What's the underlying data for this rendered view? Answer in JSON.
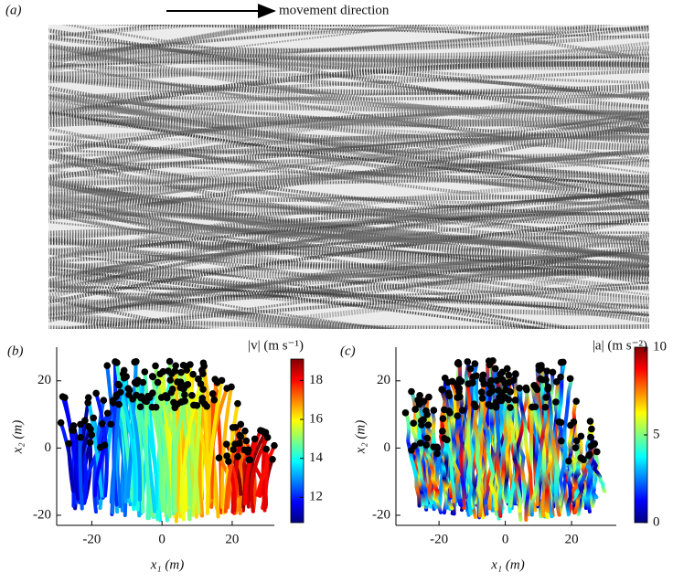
{
  "panel_a": {
    "label": "(a)",
    "annotation": "movement direction"
  },
  "chart_data": [
    {
      "type": "trajectory",
      "label": "(b)",
      "xlabel": "x₁ (m)",
      "ylabel": "x₂ (m)",
      "xlim": [
        -30,
        32
      ],
      "ylim": [
        -23,
        30
      ],
      "xticks": [
        -20,
        0,
        20
      ],
      "yticks": [
        -20,
        0,
        20
      ],
      "colorbar": {
        "title": "|v| (m s⁻¹)",
        "lim": [
          10.7,
          19.1
        ],
        "ticks": [
          12,
          14,
          16,
          18
        ],
        "colormap": "jet"
      }
    },
    {
      "type": "trajectory",
      "label": "(c)",
      "xlabel": "x₁ (m)",
      "ylabel": "x₂ (m)",
      "xlim": [
        -33,
        33.5
      ],
      "ylim": [
        -23,
        30
      ],
      "xticks": [
        -20,
        0,
        20
      ],
      "yticks": [
        -20,
        0,
        20
      ],
      "colorbar": {
        "title": "|a| (m s⁻²)",
        "lim": [
          0,
          10
        ],
        "ticks": [
          0,
          5,
          10
        ],
        "colormap": "jet"
      }
    }
  ]
}
